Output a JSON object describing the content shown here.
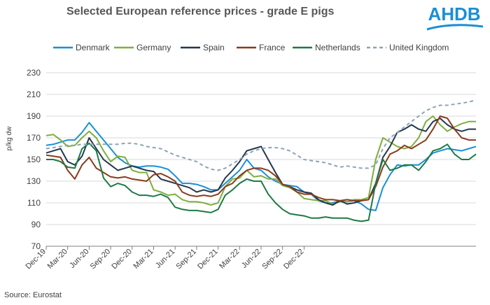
{
  "title": "Selected European reference prices - grade E pigs",
  "brand": {
    "logo_text": "AHDB",
    "color": "#1a8fd6"
  },
  "source": "Source: Eurostat",
  "chart_data": {
    "type": "line",
    "title": "Selected European reference prices - grade E pigs",
    "ylabel": "p/kg dw",
    "xlabel": "",
    "ylim": [
      70,
      230
    ],
    "yticks": [
      70,
      90,
      110,
      130,
      150,
      170,
      190,
      210,
      230
    ],
    "x_tick_labels": [
      "Dec-19",
      "Mar-20",
      "Jun-20",
      "Sep-20",
      "Dec-20",
      "Mar-21",
      "Jun-21",
      "Sep-21",
      "Dec-21",
      "Mar-22",
      "Jun-22",
      "Sep-22",
      "Dec-22"
    ],
    "grid": true,
    "legend_position": "top",
    "x_start": "2019-12",
    "x_end": "2023-01",
    "series": [
      {
        "name": "Denmark",
        "color": "#1a8fd6",
        "dash": false,
        "values": [
          163,
          164,
          166,
          168,
          168,
          175,
          184,
          176,
          168,
          160,
          152,
          147,
          144,
          143,
          144,
          144,
          143,
          141,
          135,
          128,
          128,
          127,
          125,
          122,
          122,
          128,
          134,
          140,
          150,
          142,
          140,
          134,
          130,
          127,
          126,
          125,
          120,
          118,
          112,
          110,
          110,
          112,
          111,
          112,
          109,
          104,
          103,
          124,
          136,
          145,
          144,
          145,
          145,
          150,
          156,
          158,
          160,
          159,
          158,
          160,
          162
        ]
      },
      {
        "name": "Germany",
        "color": "#7fae3e",
        "dash": false,
        "values": [
          172,
          173,
          168,
          162,
          163,
          170,
          176,
          170,
          158,
          148,
          153,
          152,
          140,
          138,
          138,
          122,
          120,
          117,
          118,
          113,
          111,
          111,
          110,
          108,
          110,
          125,
          132,
          133,
          140,
          134,
          135,
          132,
          132,
          126,
          124,
          120,
          114,
          113,
          112,
          112,
          109,
          111,
          111,
          113,
          113,
          115,
          150,
          170,
          166,
          162,
          160,
          162,
          170,
          185,
          190,
          182,
          176,
          180,
          183,
          185,
          185
        ]
      },
      {
        "name": "Spain",
        "color": "#24384f",
        "dash": false,
        "values": [
          156,
          158,
          160,
          148,
          145,
          153,
          170,
          160,
          150,
          145,
          140,
          142,
          144,
          142,
          140,
          139,
          132,
          130,
          128,
          126,
          124,
          120,
          122,
          120,
          122,
          133,
          140,
          148,
          158,
          160,
          162,
          150,
          138,
          127,
          125,
          122,
          120,
          119,
          113,
          110,
          108,
          112,
          109,
          110,
          112,
          113,
          128,
          152,
          162,
          175,
          178,
          182,
          178,
          176,
          185,
          188,
          182,
          178,
          176,
          178,
          178
        ]
      },
      {
        "name": "France",
        "color": "#8c3a1c",
        "dash": false,
        "values": [
          154,
          153,
          152,
          140,
          132,
          145,
          152,
          142,
          138,
          134,
          133,
          134,
          132,
          131,
          130,
          136,
          137,
          134,
          130,
          120,
          117,
          116,
          117,
          116,
          118,
          125,
          128,
          135,
          140,
          142,
          142,
          140,
          135,
          127,
          125,
          120,
          118,
          118,
          115,
          113,
          113,
          112,
          113,
          112,
          112,
          113,
          125,
          143,
          155,
          158,
          163,
          160,
          164,
          168,
          178,
          190,
          188,
          178,
          170,
          168,
          168
        ]
      },
      {
        "name": "Netherlands",
        "color": "#1d7a45",
        "dash": false,
        "values": [
          150,
          150,
          148,
          143,
          142,
          160,
          165,
          158,
          133,
          125,
          128,
          126,
          120,
          117,
          117,
          116,
          118,
          115,
          106,
          104,
          103,
          103,
          102,
          101,
          104,
          117,
          122,
          128,
          132,
          130,
          130,
          118,
          110,
          104,
          100,
          99,
          98,
          96,
          96,
          97,
          96,
          96,
          96,
          94,
          93,
          94,
          128,
          150,
          140,
          142,
          145,
          145,
          140,
          148,
          158,
          160,
          164,
          155,
          150,
          150,
          155
        ]
      },
      {
        "name": "United Kingdom",
        "color": "#8ea4b3",
        "dash": true,
        "values": [
          160,
          161,
          162,
          163,
          163,
          164,
          164,
          164,
          164,
          164,
          164,
          165,
          165,
          164,
          162,
          161,
          160,
          157,
          154,
          152,
          150,
          148,
          144,
          141,
          140,
          142,
          146,
          150,
          155,
          158,
          160,
          161,
          161,
          160,
          158,
          154,
          150,
          149,
          148,
          147,
          145,
          143,
          144,
          143,
          142,
          142,
          145,
          160,
          170,
          175,
          180,
          185,
          190,
          195,
          198,
          200,
          200,
          201,
          202,
          203,
          205
        ]
      }
    ]
  }
}
